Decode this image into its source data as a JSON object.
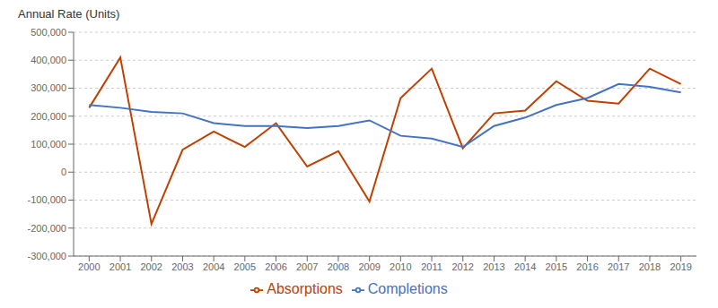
{
  "chart_data": {
    "type": "line",
    "ylabel": "Annual Rate (Units)",
    "x": [
      2000,
      2001,
      2002,
      2003,
      2004,
      2005,
      2006,
      2007,
      2008,
      2009,
      2010,
      2011,
      2012,
      2013,
      2014,
      2015,
      2016,
      2017,
      2018,
      2019
    ],
    "series": [
      {
        "name": "Absorptions",
        "color": "#bf4000",
        "values": [
          230000,
          410000,
          -185000,
          80000,
          145000,
          90000,
          175000,
          20000,
          75000,
          -105000,
          265000,
          370000,
          85000,
          210000,
          220000,
          325000,
          255000,
          245000,
          370000,
          315000
        ]
      },
      {
        "name": "Completions",
        "color": "#4472c4",
        "values": [
          240000,
          230000,
          215000,
          210000,
          175000,
          165000,
          165000,
          158000,
          165000,
          185000,
          130000,
          120000,
          90000,
          165000,
          195000,
          240000,
          265000,
          315000,
          305000,
          285000
        ]
      }
    ],
    "xlim": [
      1999.5,
      2019.5
    ],
    "xticks": [
      2000,
      2001,
      2002,
      2003,
      2004,
      2005,
      2006,
      2007,
      2008,
      2009,
      2010,
      2011,
      2012,
      2013,
      2014,
      2015,
      2016,
      2017,
      2018,
      2019
    ],
    "ylim": [
      -300000,
      500000
    ],
    "yticks": [
      {
        "value": -300000,
        "label": "-300,000"
      },
      {
        "value": -200000,
        "label": "-200,000"
      },
      {
        "value": -100000,
        "label": "-100,000"
      },
      0,
      {
        "value": 100000,
        "label": "100,000"
      },
      {
        "value": 200000,
        "label": "200,000"
      },
      {
        "value": 300000,
        "label": "300,000"
      },
      {
        "value": 400000,
        "label": "400,000"
      },
      {
        "value": 500000,
        "label": "500,000"
      }
    ],
    "grid": true,
    "legend": "bottom"
  }
}
